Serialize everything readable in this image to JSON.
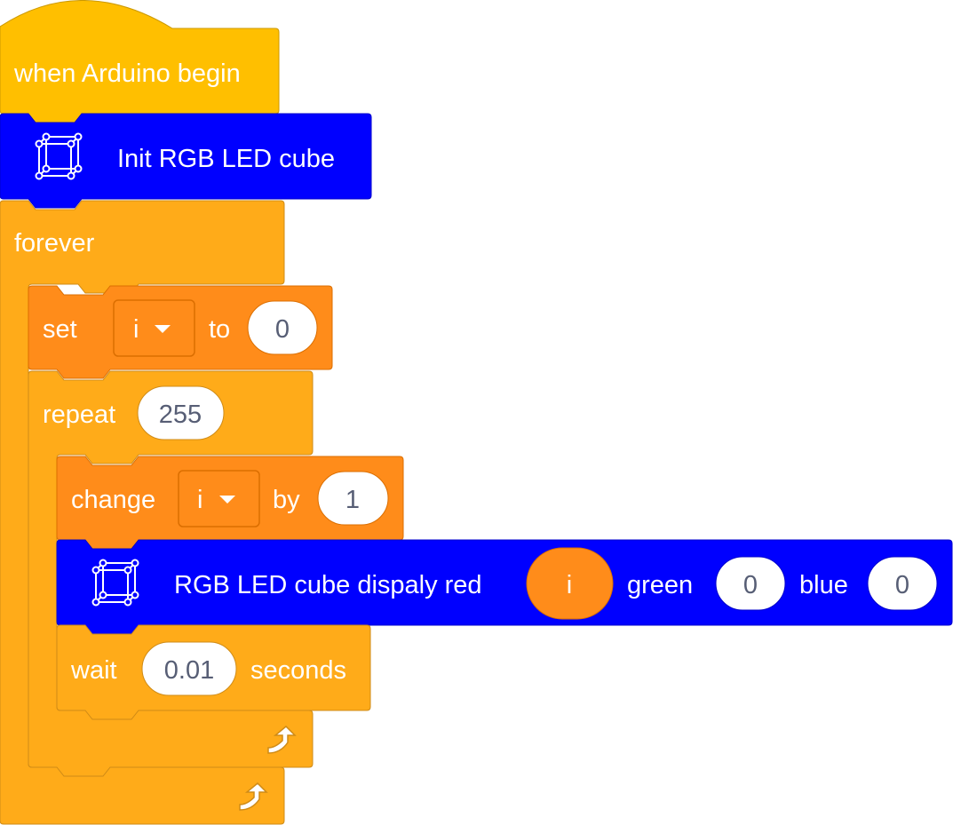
{
  "colors": {
    "events": "#ffbf00",
    "events_border": "#cc9900",
    "control": "#ffab19",
    "control_border": "#cf8b17",
    "variables": "#ff8c1a",
    "variables_border": "#db6e00",
    "extension": "#0000ff",
    "extension_border": "#0000cc",
    "input_bg": "#ffffff",
    "input_text": "#575e75",
    "label_text": "#ffffff"
  },
  "blocks": {
    "hat": {
      "label": "when Arduino begin"
    },
    "init": {
      "icon": "rgb-led-cube-icon",
      "label": "Init RGB LED cube"
    },
    "forever": {
      "label": "forever",
      "icon": "loop-arrow-icon"
    },
    "set_var": {
      "label_set": "set",
      "variable": "i",
      "label_to": "to",
      "value": "0",
      "icon": "dropdown-caret-icon"
    },
    "repeat": {
      "label": "repeat",
      "times": "255",
      "icon": "loop-arrow-icon"
    },
    "change_var": {
      "label_change": "change",
      "variable": "i",
      "label_by": "by",
      "value": "1",
      "icon": "dropdown-caret-icon"
    },
    "display": {
      "icon": "rgb-led-cube-icon",
      "label": "RGB LED cube dispaly red",
      "red": "i",
      "label_green": "green",
      "green": "0",
      "label_blue": "blue",
      "blue": "0"
    },
    "wait": {
      "label": "wait",
      "value": "0.01",
      "label_seconds": "seconds"
    }
  }
}
